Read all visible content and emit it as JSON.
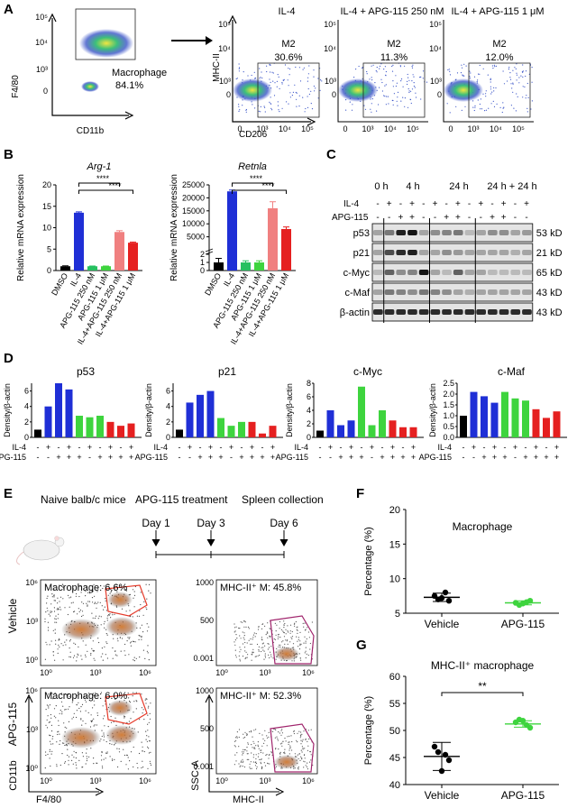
{
  "panels": {
    "A": "A",
    "B": "B",
    "C": "C",
    "D": "D",
    "E": "E",
    "F": "F",
    "G": "G"
  },
  "panel_a": {
    "gate": {
      "ylabel": "F4/80",
      "xlabel": "CD11b",
      "gate_label": "Macrophage",
      "gate_value": "84.1%",
      "yticks": [
        "10⁵",
        "10⁴",
        "10³",
        "0"
      ],
      "xticks": [
        "0",
        "10³",
        "10⁴",
        "10⁵"
      ]
    },
    "plots": [
      {
        "title": "IL-4",
        "gate_label": "M2",
        "value": "30.6%"
      },
      {
        "title": "IL-4 + APG-115 250 nM",
        "gate_label": "M2",
        "value": "11.3%"
      },
      {
        "title": "IL-4 + APG-115 1 μM",
        "gate_label": "M2",
        "value": "12.0%"
      }
    ],
    "ylabel": "MHC-II",
    "xlabel": "CD206",
    "yticks": [
      "10⁵",
      "10⁴",
      "10³",
      "0"
    ],
    "xticks": [
      "0",
      "10³",
      "10⁴",
      "10⁵"
    ]
  },
  "panel_b": {
    "ylabel": "Relative mRNA expression",
    "categories": [
      "DMSO",
      "IL-4",
      "APG-115 250 nM",
      "APG-115 1 μM",
      "IL-4+APG-115 250 nM",
      "IL-4+APG-115 1 μM"
    ],
    "sig": "****",
    "colors": [
      "#000000",
      "#1f2fd6",
      "#27c060",
      "#3ed43e",
      "#f08080",
      "#e52020"
    ]
  },
  "panel_c": {
    "timepoints": [
      "0 h",
      "4 h",
      "24 h",
      "24 h + 24 h"
    ],
    "row_labels": [
      "IL-4",
      "APG-115"
    ],
    "il4": [
      "-",
      "+",
      "-",
      "+",
      "-",
      "+",
      "-",
      "+",
      "-",
      "+",
      "-",
      "+",
      "-",
      "+"
    ],
    "apg": [
      "-",
      "-",
      "+",
      "+",
      "-",
      "-",
      "+",
      "+",
      "-",
      "-",
      "+",
      "+",
      "-",
      "-"
    ],
    "bands": [
      {
        "name": "p53",
        "size": "53 kD"
      },
      {
        "name": "p21",
        "size": "21 kD"
      },
      {
        "name": "c-Myc",
        "size": "65 kD"
      },
      {
        "name": "c-Maf",
        "size": "43 kD"
      },
      {
        "name": "β-actin",
        "size": "43 kD"
      }
    ]
  },
  "panel_d": {
    "ylabel": "Density/β-actin",
    "row_labels": [
      "IL-4",
      "APG-115"
    ],
    "il4": [
      "-",
      "+",
      "-",
      "+",
      "-",
      "+",
      "-",
      "+",
      "-",
      "+"
    ],
    "apg": [
      "-",
      "-",
      "+",
      "+",
      "+",
      "-",
      "+",
      "+",
      "+",
      "+"
    ]
  },
  "panel_e": {
    "timeline": {
      "left": "Naive balb/c mice",
      "mid": "APG-115 treatment",
      "right": "Spleen collection",
      "days": [
        "Day 1",
        "Day 3",
        "Day 6"
      ]
    },
    "rows": [
      {
        "label": "Vehicle",
        "mac": "Macrophage: 6.6%",
        "mhc": "MHC-II⁺ M: 45.8%"
      },
      {
        "label": "APG-115",
        "mac": "Macrophage: 6.0%",
        "mhc": "MHC-II⁺ M: 52.3%"
      }
    ],
    "left_yticks": [
      "10⁶",
      "10³",
      "10⁰"
    ],
    "left_xticks": [
      "10⁰",
      "10³",
      "10⁶"
    ],
    "right_yticks": [
      "1000",
      "500",
      "0.001"
    ],
    "right_xticks": [
      "10⁰",
      "10³",
      "10⁶"
    ],
    "ylabel_left": "CD11b",
    "xlabel_left": "F4/80",
    "ylabel_right": "SSC-A",
    "xlabel_right": "MHC-II"
  },
  "panel_f": {
    "title": "Macrophage",
    "ylabel": "Percentage (%)"
  },
  "panel_g": {
    "title": "MHC-II⁺ macrophage",
    "ylabel": "Percentage (%)",
    "sig": "**"
  },
  "chart_data": [
    {
      "type": "bar",
      "title": "Arg-1",
      "ylabel": "Relative mRNA expression",
      "categories": [
        "DMSO",
        "IL-4",
        "APG-115 250 nM",
        "APG-115 1 μM",
        "IL-4+APG-115 250 nM",
        "IL-4+APG-115 1 μM"
      ],
      "values": [
        1,
        13.5,
        1,
        1,
        9,
        6.5
      ],
      "errors": [
        0.1,
        0.2,
        0.05,
        0.05,
        0.3,
        0.15
      ],
      "ylim": [
        0,
        20
      ],
      "yticks": [
        "0",
        "5",
        "10",
        "15",
        "20"
      ]
    },
    {
      "type": "bar",
      "title": "Retnla",
      "ylabel": "Relative mRNA expression",
      "categories": [
        "DMSO",
        "IL-4",
        "APG-115 250 nM",
        "APG-115 1 μM",
        "IL-4+APG-115 250 nM",
        "IL-4+APG-115 1 μM"
      ],
      "values": [
        1,
        22500,
        1,
        1,
        16000,
        8000
      ],
      "errors": [
        0.5,
        500,
        0.2,
        0.2,
        2500,
        800
      ],
      "yticks": [
        "0",
        "1",
        "2",
        "5000",
        "10000",
        "15000",
        "20000",
        "25000"
      ]
    },
    {
      "type": "bar",
      "title": "p53",
      "ylabel": "Density/β-actin",
      "values": [
        1,
        4,
        7,
        6.2,
        2.8,
        2.6,
        2.8,
        2,
        1.5,
        1.8
      ],
      "ylim": [
        0,
        7
      ],
      "yticks": [
        "0",
        "2",
        "4",
        "6"
      ]
    },
    {
      "type": "bar",
      "title": "p21",
      "ylabel": "Density/β-actin",
      "values": [
        1,
        4.5,
        5.5,
        6,
        2.5,
        1.5,
        2,
        2,
        0.5,
        1.5
      ],
      "ylim": [
        0,
        7
      ],
      "yticks": [
        "0",
        "2",
        "4",
        "6"
      ]
    },
    {
      "type": "bar",
      "title": "c-Myc",
      "ylabel": "Density/β-actin",
      "values": [
        1,
        4,
        1.8,
        2.5,
        7.5,
        1.8,
        4,
        2.5,
        1.5,
        1.5
      ],
      "ylim": [
        0,
        8
      ],
      "yticks": [
        "0",
        "2",
        "4",
        "6",
        "8"
      ]
    },
    {
      "type": "bar",
      "title": "c-Maf",
      "ylabel": "Density/β-actin",
      "values": [
        1,
        2.1,
        1.9,
        1.6,
        2.1,
        1.8,
        1.7,
        1.3,
        0.9,
        1.2
      ],
      "ylim": [
        0,
        2.5
      ],
      "yticks": [
        "0.0",
        "0.5",
        "1.0",
        "1.5",
        "2.0",
        "2.5"
      ]
    },
    {
      "type": "scatter",
      "title": "Macrophage",
      "ylabel": "Percentage (%)",
      "categories": [
        "Vehicle",
        "APG-115"
      ],
      "series": [
        {
          "name": "Vehicle",
          "values": [
            7.5,
            6.8,
            7.0,
            8.0,
            7.2
          ],
          "mean": 7.3,
          "sd": 0.6
        },
        {
          "name": "APG-115",
          "values": [
            6.5,
            6.8,
            6.2,
            6.6,
            6.4
          ],
          "mean": 6.5,
          "sd": 0.3
        }
      ],
      "ylim": [
        5,
        20
      ],
      "yticks": [
        "5",
        "10",
        "15",
        "20"
      ]
    },
    {
      "type": "scatter",
      "title": "MHC-II⁺ macrophage",
      "ylabel": "Percentage (%)",
      "categories": [
        "Vehicle",
        "APG-115"
      ],
      "series": [
        {
          "name": "Vehicle",
          "values": [
            47,
            44.5,
            46,
            45.5,
            42.5
          ],
          "mean": 45.2,
          "sd": 2.6
        },
        {
          "name": "APG-115",
          "values": [
            51.5,
            50.5,
            52,
            51,
            51.8
          ],
          "mean": 51.2,
          "sd": 0.6
        }
      ],
      "ylim": [
        40,
        60
      ],
      "yticks": [
        "40",
        "45",
        "50",
        "55",
        "60"
      ]
    }
  ]
}
